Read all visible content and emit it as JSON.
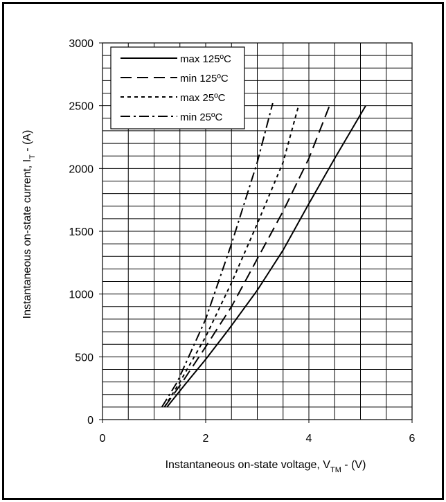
{
  "chart_data": {
    "type": "line",
    "xlabel_main": "Instantaneous on-state voltage, V",
    "xlabel_sub": "TM",
    "xlabel_tail": " - (V)",
    "ylabel_main": "Instantaneous on-state current, I",
    "ylabel_sub": "T",
    "ylabel_tail": " - (A)",
    "xlim": [
      0,
      6
    ],
    "ylim": [
      0,
      3000
    ],
    "x_ticks": [
      "0",
      "2",
      "4",
      "6"
    ],
    "y_ticks": [
      "0",
      "500",
      "1000",
      "1500",
      "2000",
      "2500",
      "3000"
    ],
    "grid": true,
    "legend_position": "top-left",
    "series": [
      {
        "name": "max 125ºC",
        "dash": "solid",
        "points": [
          [
            1.25,
            100
          ],
          [
            1.6,
            280
          ],
          [
            2.0,
            480
          ],
          [
            2.45,
            720
          ],
          [
            3.0,
            1030
          ],
          [
            3.5,
            1350
          ],
          [
            4.0,
            1720
          ],
          [
            4.5,
            2080
          ],
          [
            5.1,
            2500
          ]
        ]
      },
      {
        "name": "min 125ºC",
        "dash": "dash",
        "points": [
          [
            1.2,
            100
          ],
          [
            1.55,
            300
          ],
          [
            2.0,
            580
          ],
          [
            2.5,
            900
          ],
          [
            3.0,
            1280
          ],
          [
            3.5,
            1660
          ],
          [
            4.0,
            2080
          ],
          [
            4.4,
            2500
          ]
        ]
      },
      {
        "name": "max 25ºC",
        "dash": "dot",
        "points": [
          [
            1.2,
            100
          ],
          [
            1.5,
            300
          ],
          [
            2.0,
            660
          ],
          [
            2.5,
            1090
          ],
          [
            3.0,
            1560
          ],
          [
            3.5,
            2050
          ],
          [
            3.8,
            2500
          ]
        ]
      },
      {
        "name": "min 25ºC",
        "dash": "dashdot",
        "points": [
          [
            1.15,
            100
          ],
          [
            1.45,
            300
          ],
          [
            2.0,
            800
          ],
          [
            2.5,
            1400
          ],
          [
            3.0,
            2050
          ],
          [
            3.3,
            2520
          ]
        ]
      }
    ]
  }
}
